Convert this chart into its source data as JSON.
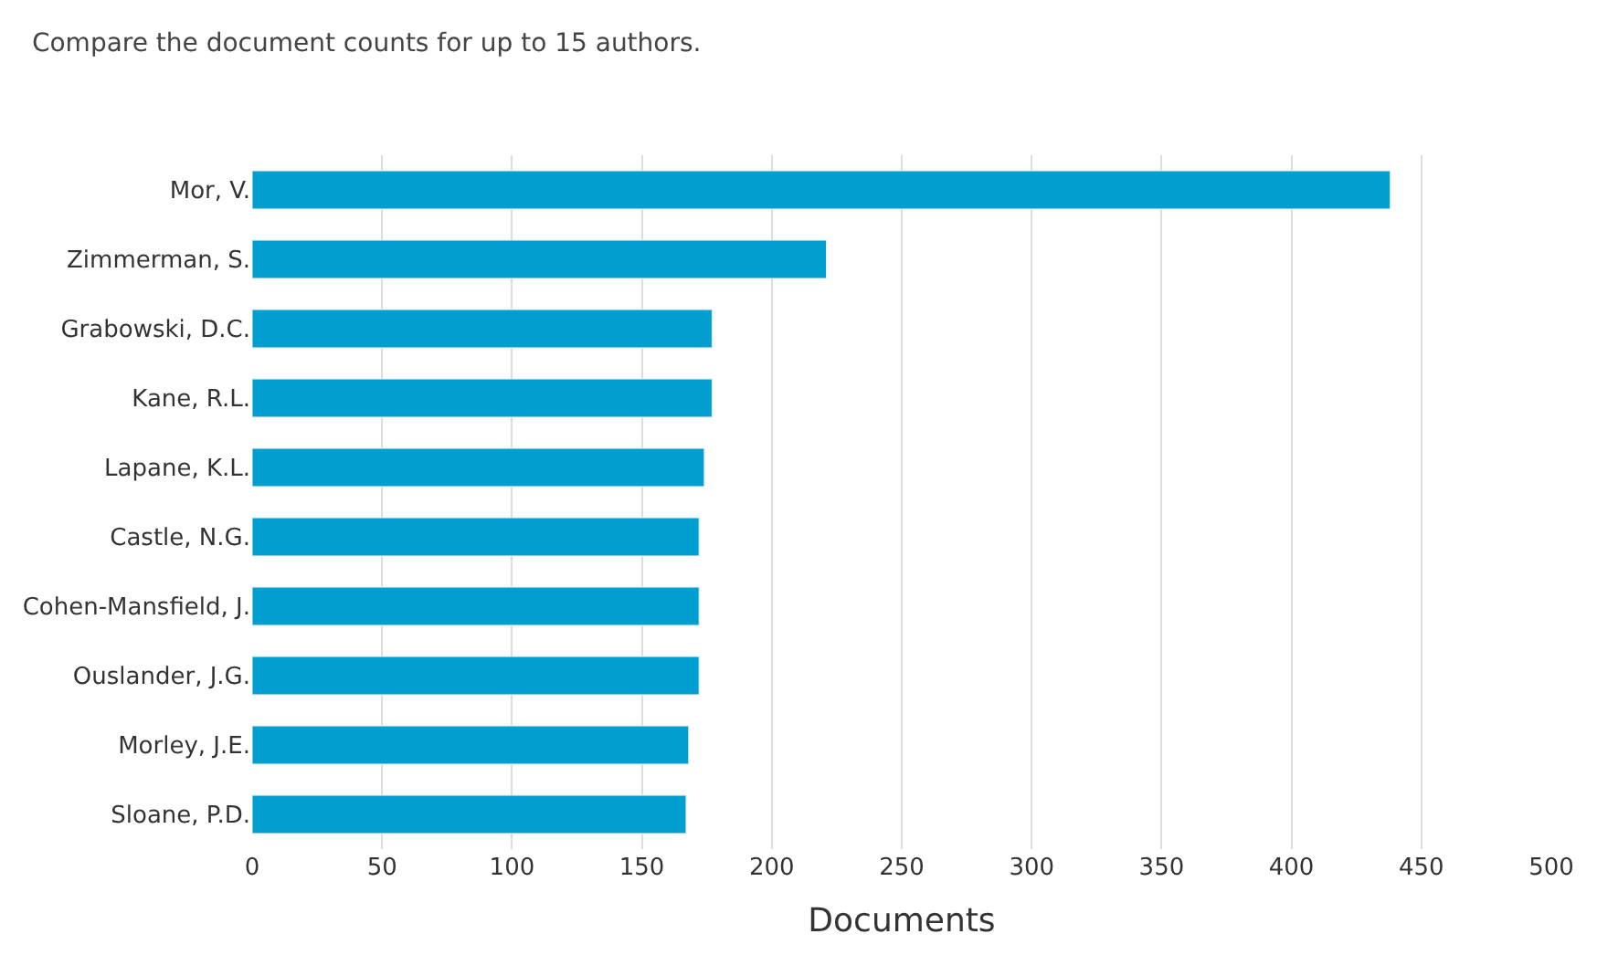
{
  "chart_data": {
    "type": "bar",
    "orientation": "horizontal",
    "title": "Compare the document counts for up to 15 authors.",
    "xlabel": "Documents",
    "categories": [
      "Mor, V.",
      "Zimmerman, S.",
      "Grabowski, D.C.",
      "Kane, R.L.",
      "Lapane, K.L.",
      "Castle, N.G.",
      "Cohen-Mansfield, J.",
      "Ouslander, J.G.",
      "Morley, J.E.",
      "Sloane, P.D."
    ],
    "values": [
      438,
      221,
      177,
      177,
      174,
      172,
      172,
      172,
      168,
      167
    ],
    "color": "#009fd0",
    "xlim": [
      0,
      500
    ],
    "xticks": [
      0,
      50,
      100,
      150,
      200,
      250,
      300,
      350,
      400,
      450,
      500
    ],
    "grid": "x",
    "legend": false
  }
}
